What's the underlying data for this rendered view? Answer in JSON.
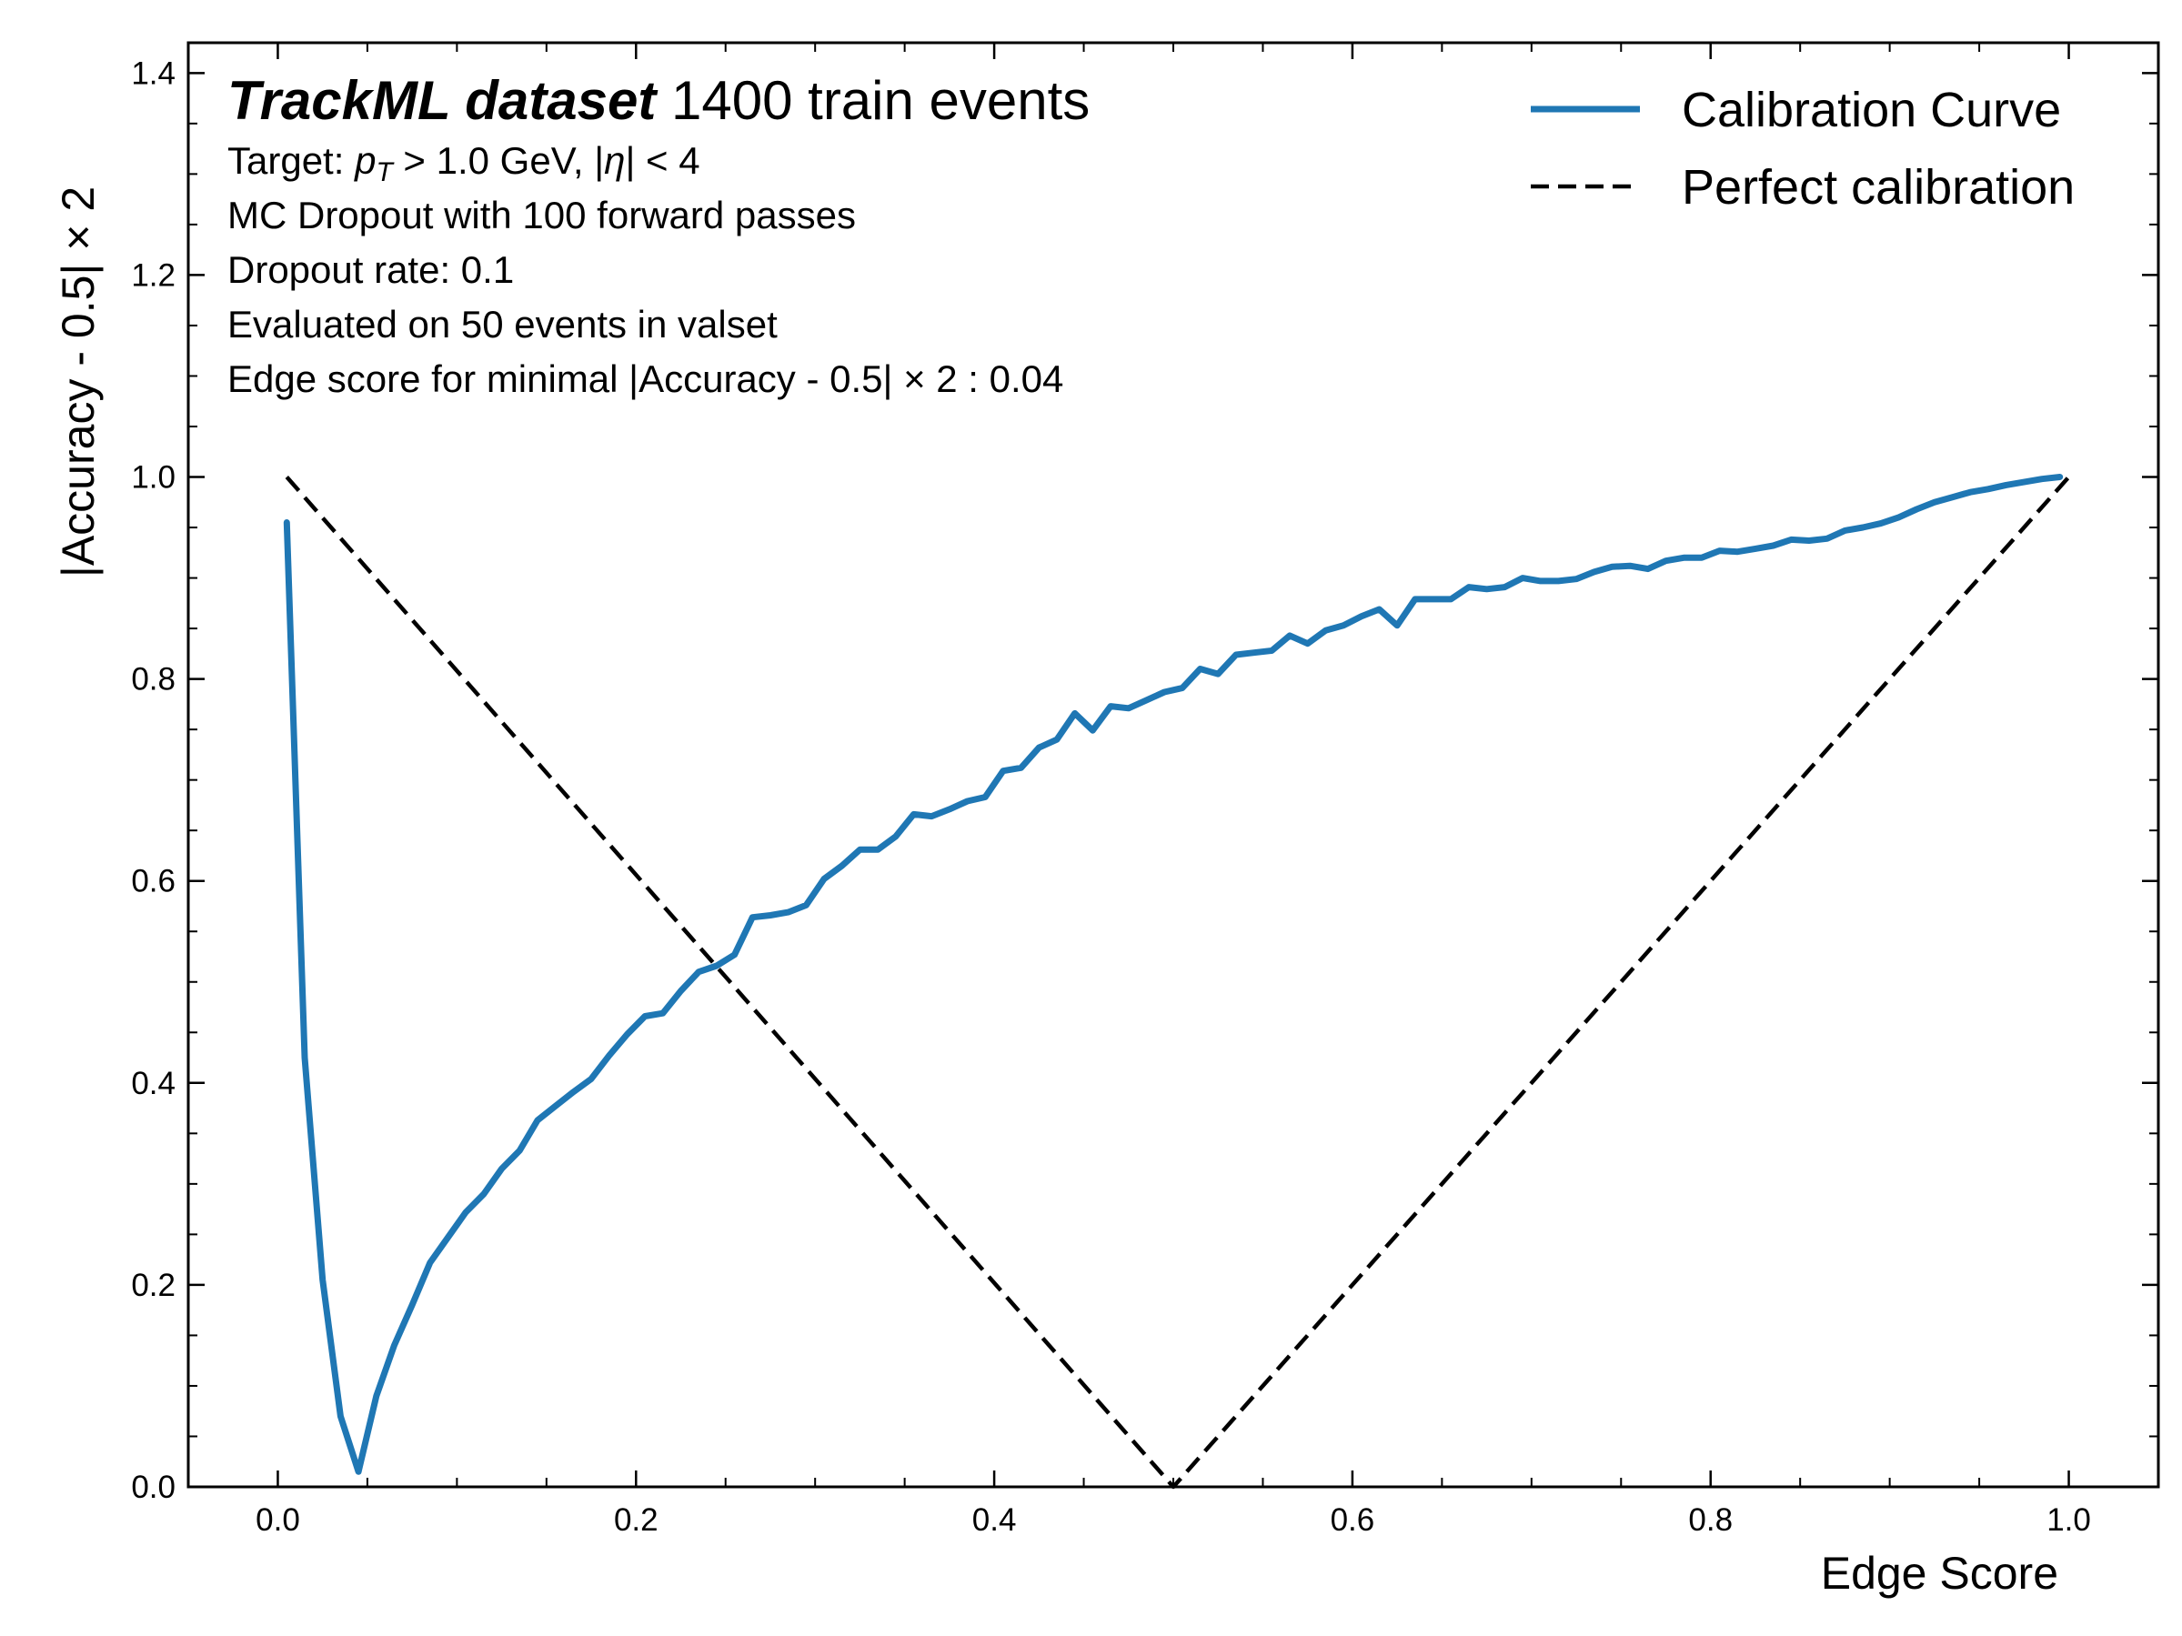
{
  "chart_data": {
    "type": "line",
    "xlabel": "Edge Score",
    "ylabel": "|Accuracy - 0.5| × 2",
    "xlim": [
      -0.05,
      1.05
    ],
    "ylim": [
      0.0,
      1.43
    ],
    "xticks": [
      0.0,
      0.2,
      0.4,
      0.6,
      0.8,
      1.0
    ],
    "xtick_labels": [
      "0.0",
      "0.2",
      "0.4",
      "0.6",
      "0.8",
      "1.0"
    ],
    "yticks": [
      0.0,
      0.2,
      0.4,
      0.6,
      0.8,
      1.0,
      1.2,
      1.4
    ],
    "ytick_labels": [
      "0.0",
      "0.2",
      "0.4",
      "0.6",
      "0.8",
      "1.0",
      "1.2",
      "1.4"
    ],
    "x_minor_step": 0.05,
    "y_minor_step": 0.05,
    "grid": false,
    "legend_position": "top-right",
    "annotations": {
      "title_bold": "TrackML dataset",
      "title_rest": " 1400 train events",
      "target_prefix": "Target: ",
      "target_p": "p",
      "target_sub": "T",
      "target_mid": " > 1.0 GeV, |",
      "target_eta": "η",
      "target_end": "| < 4",
      "lines": [
        "MC Dropout with 100 forward passes",
        "Dropout rate: 0.1",
        "Evaluated on 50 events in valset",
        "Edge score for minimal |Accuracy - 0.5| × 2 : 0.04"
      ]
    },
    "series": [
      {
        "name": "Calibration Curve",
        "color": "#1f77b4",
        "style": "solid",
        "x": [
          0.005,
          0.015,
          0.025,
          0.035,
          0.045,
          0.055,
          0.065,
          0.075,
          0.085,
          0.095,
          0.105,
          0.115,
          0.125,
          0.135,
          0.145,
          0.155,
          0.165,
          0.175,
          0.185,
          0.195,
          0.205,
          0.215,
          0.225,
          0.235,
          0.245,
          0.255,
          0.265,
          0.275,
          0.285,
          0.295,
          0.305,
          0.315,
          0.325,
          0.335,
          0.345,
          0.355,
          0.365,
          0.375,
          0.385,
          0.395,
          0.405,
          0.415,
          0.425,
          0.435,
          0.445,
          0.455,
          0.465,
          0.475,
          0.485,
          0.495,
          0.505,
          0.515,
          0.525,
          0.535,
          0.545,
          0.555,
          0.565,
          0.575,
          0.585,
          0.595,
          0.605,
          0.615,
          0.625,
          0.635,
          0.645,
          0.655,
          0.665,
          0.675,
          0.685,
          0.695,
          0.705,
          0.715,
          0.725,
          0.735,
          0.745,
          0.755,
          0.765,
          0.775,
          0.785,
          0.795,
          0.805,
          0.815,
          0.825,
          0.835,
          0.845,
          0.855,
          0.865,
          0.875,
          0.885,
          0.895,
          0.905,
          0.915,
          0.925,
          0.935,
          0.945,
          0.955,
          0.965,
          0.975,
          0.985,
          0.995
        ],
        "y": [
          0.955,
          0.425,
          0.205,
          0.07,
          0.015,
          0.09,
          0.14,
          0.18,
          0.222,
          0.247,
          0.272,
          0.29,
          0.315,
          0.333,
          0.363,
          0.377,
          0.391,
          0.404,
          0.427,
          0.448,
          0.466,
          0.469,
          0.491,
          0.51,
          0.516,
          0.527,
          0.564,
          0.566,
          0.569,
          0.576,
          0.602,
          0.615,
          0.631,
          0.631,
          0.644,
          0.666,
          0.664,
          0.671,
          0.679,
          0.683,
          0.709,
          0.712,
          0.732,
          0.74,
          0.766,
          0.749,
          0.773,
          0.771,
          0.779,
          0.787,
          0.791,
          0.81,
          0.805,
          0.824,
          0.826,
          0.828,
          0.843,
          0.835,
          0.848,
          0.853,
          0.862,
          0.869,
          0.853,
          0.879,
          0.879,
          0.879,
          0.891,
          0.889,
          0.891,
          0.9,
          0.897,
          0.897,
          0.899,
          0.906,
          0.911,
          0.912,
          0.909,
          0.917,
          0.92,
          0.92,
          0.927,
          0.926,
          0.929,
          0.932,
          0.938,
          0.937,
          0.939,
          0.947,
          0.95,
          0.954,
          0.96,
          0.968,
          0.975,
          0.98,
          0.985,
          0.988,
          0.992,
          0.995,
          0.998,
          1.0
        ]
      },
      {
        "name": "Perfect calibration",
        "color": "#000000",
        "style": "dashed",
        "x": [
          0.005,
          0.5,
          1.0
        ],
        "y": [
          1.0,
          0.0,
          1.0
        ]
      }
    ]
  }
}
